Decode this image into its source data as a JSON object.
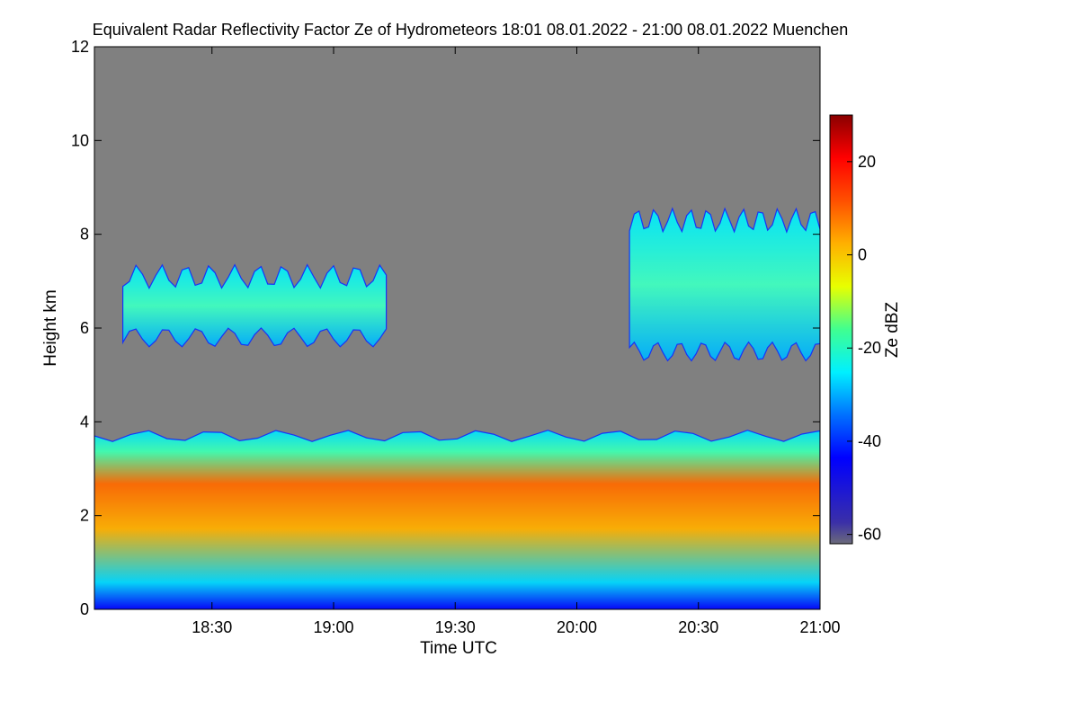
{
  "chart_data": {
    "type": "heatmap",
    "title": "Equivalent Radar Reflectivity Factor Ze of Hydrometeors   18:01 08.01.2022 - 21:00 08.01.2022 Muenchen",
    "xlabel": "Time UTC",
    "ylabel": "Height km",
    "x_range": [
      "18:01",
      "21:00"
    ],
    "xlim_minutes": [
      1081,
      1260
    ],
    "x_ticks": [
      {
        "label": "18:30",
        "minutes": 1110
      },
      {
        "label": "19:00",
        "minutes": 1140
      },
      {
        "label": "19:30",
        "minutes": 1170
      },
      {
        "label": "20:00",
        "minutes": 1200
      },
      {
        "label": "20:30",
        "minutes": 1230
      },
      {
        "label": "21:00",
        "minutes": 1260
      }
    ],
    "ylim": [
      0,
      12
    ],
    "y_ticks": [
      0,
      2,
      4,
      6,
      8,
      10,
      12
    ],
    "colorbar": {
      "label": "Ze dBZ",
      "range": [
        -62,
        30
      ],
      "ticks": [
        -60,
        -40,
        -20,
        0,
        20
      ]
    },
    "background_color": "#808080",
    "layers": [
      {
        "name": "lower precipitation layer",
        "start": "18:01",
        "end": "21:00",
        "base_km": 0.0,
        "top_km": 3.7,
        "typical_dbz": [
          -40,
          20
        ]
      },
      {
        "name": "mid-level cloud",
        "start": "18:08",
        "end": "19:13",
        "base_km": 5.8,
        "top_km": 7.1,
        "typical_dbz": [
          -30,
          -15
        ]
      },
      {
        "name": "upper cloud",
        "start": "20:13",
        "end": "21:00",
        "base_km": 5.5,
        "top_km": 8.3,
        "typical_dbz": [
          -35,
          -10
        ]
      }
    ]
  }
}
